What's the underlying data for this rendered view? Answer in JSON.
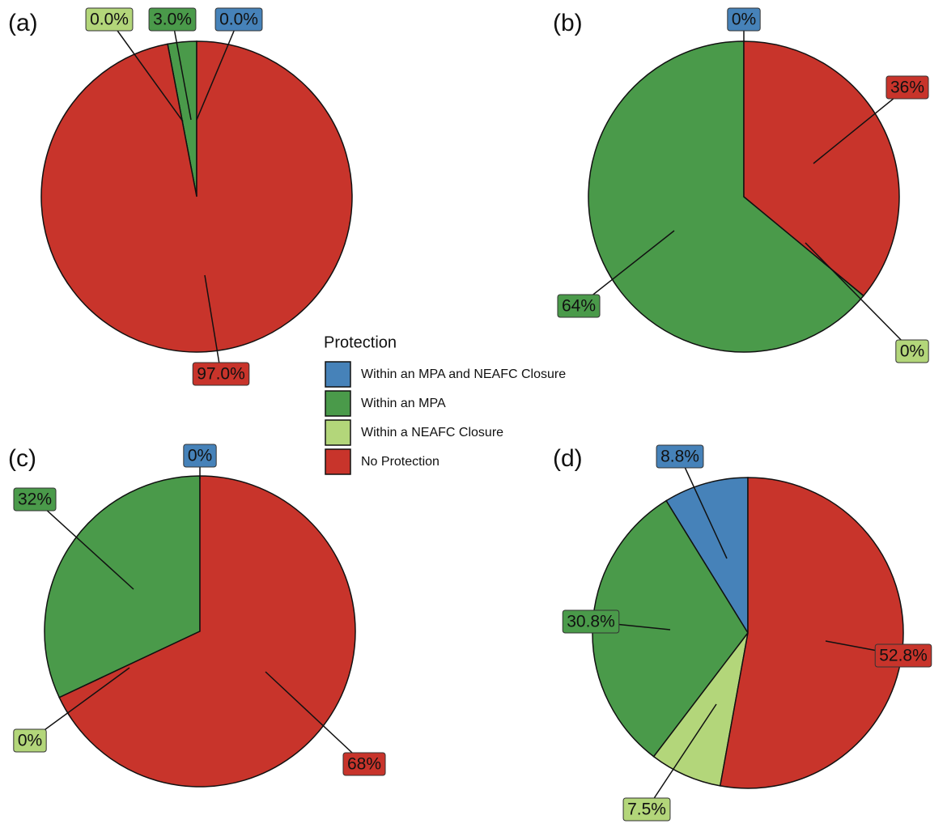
{
  "chart_data": [
    {
      "type": "pie",
      "title": "(a)",
      "legend_title": "Protection",
      "categories": [
        "Within an MPA and NEAFC Closure",
        "Within an MPA",
        "Within a NEAFC Closure",
        "No Protection"
      ],
      "colors": [
        "#4682b9",
        "#4a9a4a",
        "#b3d67a",
        "#c8342b"
      ],
      "values": [
        0.0,
        3.0,
        0.0,
        97.0
      ],
      "value_labels": [
        "0.0%",
        "3.0%",
        "0.0%",
        "97.0%"
      ]
    },
    {
      "type": "pie",
      "title": "(b)",
      "values": [
        0,
        64,
        0,
        36
      ],
      "value_labels": [
        "0%",
        "64%",
        "0%",
        "36%"
      ]
    },
    {
      "type": "pie",
      "title": "(c)",
      "values": [
        0,
        32,
        0,
        68
      ],
      "value_labels": [
        "0%",
        "32%",
        "0%",
        "68%"
      ]
    },
    {
      "type": "pie",
      "title": "(d)",
      "values": [
        8.8,
        30.8,
        7.5,
        52.8
      ],
      "value_labels": [
        "8.8%",
        "30.8%",
        "7.5%",
        "52.8%"
      ]
    }
  ]
}
